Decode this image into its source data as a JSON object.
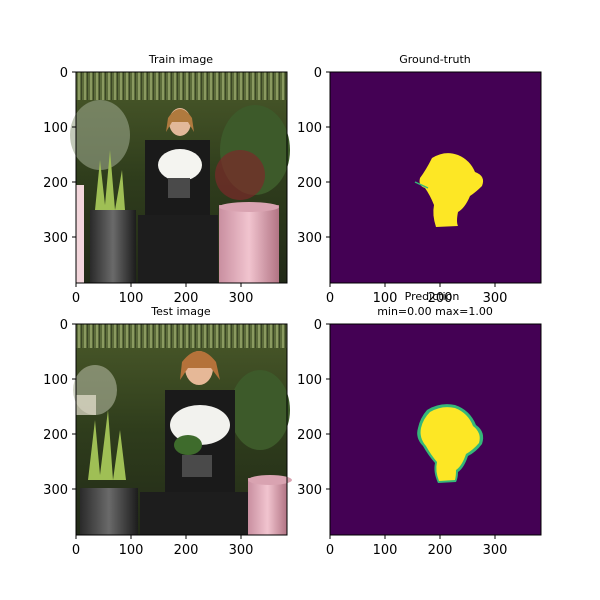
{
  "panels": [
    {
      "title": "Train image",
      "kind": "photo",
      "x_ticks": [
        "0",
        "100",
        "200",
        "300"
      ],
      "y_ticks": [
        "0",
        "100",
        "200",
        "300"
      ]
    },
    {
      "title": "Ground-truth",
      "kind": "mask",
      "x_ticks": [
        "0",
        "100",
        "200",
        "300"
      ],
      "y_ticks": [
        "0",
        "100",
        "200",
        "300"
      ]
    },
    {
      "title": "Test image",
      "kind": "photo",
      "x_ticks": [
        "0",
        "100",
        "200",
        "300"
      ],
      "y_ticks": [
        "0",
        "100",
        "200",
        "300"
      ]
    },
    {
      "title_line1": "Prediction",
      "title_line2": "min=0.00 max=1.00",
      "kind": "mask",
      "x_ticks": [
        "0",
        "100",
        "200",
        "300"
      ],
      "y_ticks": [
        "0",
        "100",
        "200",
        "300"
      ]
    }
  ],
  "colors": {
    "mask_background": "#440154",
    "mask_foreground": "#fde725",
    "mask_edge": "#35b779"
  }
}
